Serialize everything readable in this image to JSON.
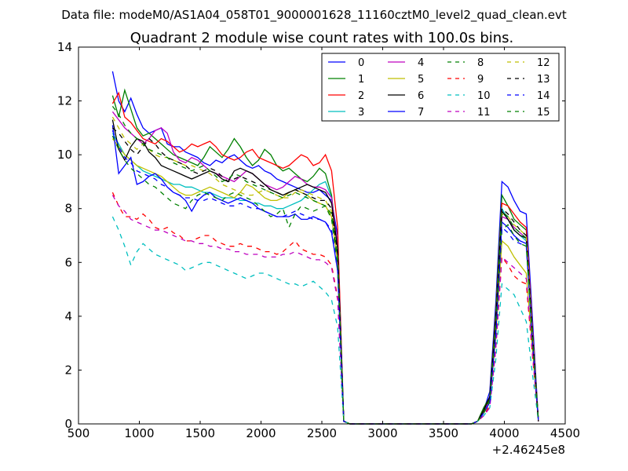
{
  "chart_data": {
    "type": "line",
    "suptitle": "Data file: modeM0/AS1A04_058T01_9000001628_11160cztM0_level2_quad_clean.evt",
    "title": "Quadrant 2 module wise count rates with 100.0s bins.",
    "xlabel": "",
    "ylabel": "",
    "x_offset_label": "+2.46245e8",
    "xlim": [
      500,
      4500
    ],
    "ylim": [
      0,
      14
    ],
    "xticks": [
      "500",
      "1000",
      "1500",
      "2000",
      "2500",
      "3000",
      "3500",
      "4000",
      "4500"
    ],
    "yticks": [
      "0",
      "2",
      "4",
      "6",
      "8",
      "10",
      "12",
      "14"
    ],
    "grid": false,
    "legend_position": "top-right",
    "x": [
      780,
      830,
      880,
      930,
      980,
      1030,
      1080,
      1130,
      1180,
      1230,
      1280,
      1330,
      1380,
      1430,
      1480,
      1530,
      1580,
      1630,
      1680,
      1730,
      1780,
      1830,
      1880,
      1930,
      1980,
      2030,
      2080,
      2130,
      2180,
      2230,
      2280,
      2330,
      2380,
      2430,
      2480,
      2530,
      2580,
      2630,
      2680,
      2730,
      2780,
      2830,
      2880,
      2930,
      2980,
      3030,
      3080,
      3130,
      3180,
      3230,
      3280,
      3330,
      3380,
      3430,
      3480,
      3530,
      3580,
      3630,
      3680,
      3730,
      3780,
      3830,
      3880,
      3930,
      3980,
      4030,
      4080,
      4130,
      4180,
      4230,
      4280
    ],
    "series": [
      {
        "name": "0",
        "color": "#0000ff",
        "dash": "solid",
        "values": [
          13.1,
          12.0,
          11.6,
          12.1,
          11.5,
          11.0,
          10.8,
          10.9,
          11.0,
          10.4,
          10.3,
          10.3,
          10.1,
          10.0,
          9.9,
          9.7,
          9.6,
          9.8,
          9.7,
          9.9,
          10.0,
          9.8,
          9.6,
          9.5,
          9.6,
          9.4,
          9.3,
          9.1,
          9.0,
          8.9,
          8.8,
          8.7,
          8.6,
          8.6,
          8.7,
          8.5,
          8.3,
          7.0,
          0.1,
          0,
          0,
          0,
          0,
          0,
          0,
          0,
          0,
          0,
          0,
          0,
          0,
          0,
          0,
          0,
          0,
          0,
          0,
          0,
          0,
          0,
          0.1,
          0.5,
          1.2,
          4.5,
          9.0,
          8.8,
          8.3,
          7.9,
          7.8,
          4.0,
          0.1
        ]
      },
      {
        "name": "1",
        "color": "#008000",
        "dash": "solid",
        "values": [
          12.2,
          11.4,
          12.4,
          11.7,
          11.0,
          10.7,
          10.8,
          10.6,
          10.4,
          10.2,
          10.0,
          9.9,
          9.8,
          9.7,
          9.6,
          9.9,
          10.3,
          10.1,
          9.9,
          10.2,
          10.6,
          10.3,
          9.9,
          9.6,
          9.8,
          10.2,
          10.0,
          9.6,
          9.4,
          9.5,
          9.3,
          9.1,
          9.0,
          9.2,
          9.5,
          9.3,
          8.5,
          6.5,
          0.1,
          0,
          0,
          0,
          0,
          0,
          0,
          0,
          0,
          0,
          0,
          0,
          0,
          0,
          0,
          0,
          0,
          0,
          0,
          0,
          0,
          0,
          0.1,
          0.6,
          1.0,
          4.2,
          8.5,
          8.1,
          7.6,
          7.4,
          7.2,
          3.5,
          0.1
        ]
      },
      {
        "name": "2",
        "color": "#ff0000",
        "dash": "solid",
        "values": [
          11.9,
          12.3,
          11.4,
          11.2,
          10.9,
          10.6,
          10.5,
          10.4,
          10.6,
          10.5,
          10.3,
          10.1,
          10.2,
          10.4,
          10.3,
          10.4,
          10.5,
          10.3,
          10.0,
          9.9,
          9.8,
          9.9,
          10.1,
          10.2,
          9.9,
          9.8,
          9.7,
          9.6,
          9.5,
          9.6,
          9.8,
          10.0,
          9.9,
          9.6,
          9.7,
          10.0,
          9.4,
          7.3,
          0.1,
          0,
          0,
          0,
          0,
          0,
          0,
          0,
          0,
          0,
          0,
          0,
          0,
          0,
          0,
          0,
          0,
          0,
          0,
          0,
          0,
          0,
          0.1,
          0.5,
          1.0,
          4.0,
          8.2,
          8.1,
          7.8,
          7.5,
          7.3,
          3.6,
          0.1
        ]
      },
      {
        "name": "3",
        "color": "#00bfbf",
        "dash": "solid",
        "values": [
          10.8,
          10.4,
          10.0,
          9.8,
          9.6,
          9.4,
          9.3,
          9.2,
          9.1,
          9.0,
          8.9,
          8.9,
          8.8,
          8.8,
          8.7,
          8.6,
          8.6,
          8.5,
          8.4,
          8.4,
          8.4,
          8.3,
          8.3,
          8.2,
          8.2,
          8.1,
          8.1,
          8.0,
          8.0,
          8.1,
          8.2,
          8.3,
          8.5,
          8.7,
          8.9,
          9.0,
          8.4,
          6.6,
          0.1,
          0,
          0,
          0,
          0,
          0,
          0,
          0,
          0,
          0,
          0,
          0,
          0,
          0,
          0,
          0,
          0,
          0,
          0,
          0,
          0,
          0,
          0.1,
          0.4,
          0.9,
          3.8,
          8.0,
          7.6,
          7.2,
          7.0,
          6.8,
          3.2,
          0.1
        ]
      },
      {
        "name": "4",
        "color": "#bf00bf",
        "dash": "solid",
        "values": [
          11.6,
          11.3,
          11.0,
          10.8,
          10.6,
          10.4,
          10.6,
          10.9,
          11.0,
          10.8,
          10.1,
          9.8,
          9.7,
          9.9,
          9.8,
          9.6,
          9.4,
          9.3,
          9.2,
          9.1,
          9.0,
          9.2,
          9.4,
          9.3,
          9.1,
          8.9,
          8.8,
          8.7,
          8.8,
          9.0,
          9.2,
          9.1,
          8.9,
          8.8,
          8.8,
          8.7,
          8.4,
          6.6,
          0.1,
          0,
          0,
          0,
          0,
          0,
          0,
          0,
          0,
          0,
          0,
          0,
          0,
          0,
          0,
          0,
          0,
          0,
          0,
          0,
          0,
          0,
          0.1,
          0.4,
          0.9,
          3.6,
          7.7,
          7.6,
          7.3,
          7.1,
          6.9,
          3.3,
          0.1
        ]
      },
      {
        "name": "5",
        "color": "#bfbf00",
        "dash": "solid",
        "values": [
          10.6,
          10.3,
          10.0,
          9.8,
          9.6,
          9.5,
          9.4,
          9.3,
          9.2,
          9.0,
          8.8,
          8.6,
          8.5,
          8.5,
          8.6,
          8.7,
          8.8,
          8.7,
          8.6,
          8.5,
          8.4,
          8.6,
          8.9,
          8.8,
          8.6,
          8.4,
          8.3,
          8.3,
          8.4,
          8.6,
          8.7,
          8.6,
          8.5,
          8.3,
          8.2,
          8.1,
          7.7,
          6.0,
          0.1,
          0,
          0,
          0,
          0,
          0,
          0,
          0,
          0,
          0,
          0,
          0,
          0,
          0,
          0,
          0,
          0,
          0,
          0,
          0,
          0,
          0,
          0.1,
          0.4,
          0.8,
          3.2,
          6.8,
          6.6,
          6.2,
          5.9,
          5.6,
          2.8,
          0.1
        ]
      },
      {
        "name": "6",
        "color": "#000000",
        "dash": "solid",
        "values": [
          11.3,
          10.2,
          9.8,
          10.3,
          10.6,
          10.5,
          10.1,
          9.9,
          9.6,
          9.5,
          9.4,
          9.3,
          9.2,
          9.1,
          9.2,
          9.3,
          9.4,
          9.3,
          9.1,
          9.0,
          9.4,
          9.5,
          9.4,
          9.3,
          9.1,
          8.9,
          8.7,
          8.6,
          8.5,
          8.6,
          8.7,
          8.8,
          8.9,
          8.8,
          8.7,
          8.6,
          8.2,
          6.5,
          0.1,
          0,
          0,
          0,
          0,
          0,
          0,
          0,
          0,
          0,
          0,
          0,
          0,
          0,
          0,
          0,
          0,
          0,
          0,
          0,
          0,
          0,
          0.1,
          0.5,
          1.0,
          3.8,
          7.9,
          7.6,
          7.2,
          7.0,
          6.9,
          3.4,
          0.1
        ]
      },
      {
        "name": "7",
        "color": "#0000ff",
        "dash": "solid",
        "values": [
          11.1,
          9.3,
          9.6,
          9.9,
          8.9,
          9.0,
          9.2,
          9.3,
          9.1,
          8.8,
          8.6,
          8.5,
          8.3,
          7.9,
          8.3,
          8.5,
          8.6,
          8.4,
          8.3,
          8.2,
          8.3,
          8.4,
          8.3,
          8.2,
          8.0,
          7.9,
          7.8,
          7.7,
          7.7,
          7.7,
          7.8,
          7.6,
          7.6,
          7.7,
          7.6,
          7.5,
          7.1,
          5.7,
          0.1,
          0,
          0,
          0,
          0,
          0,
          0,
          0,
          0,
          0,
          0,
          0,
          0,
          0,
          0,
          0,
          0,
          0,
          0,
          0,
          0,
          0,
          0.1,
          0.4,
          0.8,
          3.4,
          7.5,
          7.3,
          7.0,
          6.8,
          6.7,
          3.2,
          0.1
        ]
      },
      {
        "name": "8",
        "color": "#008000",
        "dash": "dashed",
        "values": [
          10.7,
          10.2,
          9.8,
          9.5,
          9.3,
          9.1,
          8.9,
          8.8,
          8.6,
          8.4,
          8.2,
          8.1,
          8.0,
          8.3,
          8.5,
          8.6,
          8.5,
          8.4,
          8.3,
          8.5,
          8.6,
          8.5,
          8.4,
          8.3,
          8.1,
          7.9,
          7.7,
          7.8,
          8.0,
          7.3,
          7.8,
          8.1,
          8.0,
          7.9,
          8.0,
          8.1,
          7.6,
          5.9,
          0.1,
          0,
          0,
          0,
          0,
          0,
          0,
          0,
          0,
          0,
          0,
          0,
          0,
          0,
          0,
          0,
          0,
          0,
          0,
          0,
          0,
          0,
          0.1,
          0.4,
          0.8,
          3.4,
          7.2,
          7.4,
          7.0,
          6.7,
          6.6,
          3.1,
          0.1
        ]
      },
      {
        "name": "9",
        "color": "#ff0000",
        "dash": "dashed",
        "values": [
          8.6,
          8.1,
          7.7,
          7.7,
          7.6,
          7.8,
          7.6,
          7.3,
          7.2,
          7.3,
          7.1,
          7.0,
          6.8,
          6.8,
          6.9,
          7.0,
          7.0,
          6.8,
          6.7,
          6.6,
          6.6,
          6.7,
          6.6,
          6.6,
          6.5,
          6.4,
          6.4,
          6.3,
          6.4,
          6.6,
          6.8,
          6.5,
          6.4,
          6.3,
          6.3,
          6.2,
          5.9,
          4.7,
          0.1,
          0,
          0,
          0,
          0,
          0,
          0,
          0,
          0,
          0,
          0,
          0,
          0,
          0,
          0,
          0,
          0,
          0,
          0,
          0,
          0,
          0,
          0.1,
          0.3,
          0.7,
          2.8,
          6.2,
          5.9,
          5.5,
          5.3,
          5.2,
          2.6,
          0.1
        ]
      },
      {
        "name": "10",
        "color": "#00bfbf",
        "dash": "dashed",
        "values": [
          7.7,
          7.2,
          6.6,
          5.9,
          6.4,
          6.7,
          6.5,
          6.3,
          6.2,
          6.1,
          6.0,
          5.9,
          5.7,
          5.8,
          5.9,
          6.0,
          6.0,
          5.9,
          5.8,
          5.7,
          5.6,
          5.5,
          5.4,
          5.5,
          5.6,
          5.6,
          5.5,
          5.4,
          5.3,
          5.2,
          5.2,
          5.1,
          5.2,
          5.3,
          5.1,
          4.9,
          4.6,
          3.6,
          0.1,
          0,
          0,
          0,
          0,
          0,
          0,
          0,
          0,
          0,
          0,
          0,
          0,
          0,
          0,
          0,
          0,
          0,
          0,
          0,
          0,
          0,
          0.1,
          0.3,
          0.6,
          2.4,
          5.2,
          5.0,
          4.8,
          4.3,
          3.8,
          1.9,
          0.1
        ]
      },
      {
        "name": "11",
        "color": "#bf00bf",
        "dash": "dashed",
        "values": [
          8.5,
          8.1,
          7.9,
          7.6,
          7.5,
          7.4,
          7.3,
          7.2,
          7.2,
          7.1,
          7.0,
          6.9,
          6.8,
          6.8,
          6.7,
          6.7,
          6.6,
          6.6,
          6.5,
          6.5,
          6.4,
          6.4,
          6.3,
          6.3,
          6.3,
          6.2,
          6.2,
          6.2,
          6.3,
          6.3,
          6.4,
          6.3,
          6.2,
          6.1,
          6.1,
          6.0,
          5.8,
          4.6,
          0.1,
          0,
          0,
          0,
          0,
          0,
          0,
          0,
          0,
          0,
          0,
          0,
          0,
          0,
          0,
          0,
          0,
          0,
          0,
          0,
          0,
          0,
          0.1,
          0.3,
          0.6,
          2.8,
          6.2,
          6.0,
          5.8,
          5.6,
          5.4,
          2.7,
          0.1
        ]
      },
      {
        "name": "12",
        "color": "#bfbf00",
        "dash": "dashed",
        "values": [
          11.4,
          11.0,
          10.6,
          10.4,
          10.2,
          10.4,
          10.2,
          10.0,
          9.9,
          9.9,
          9.8,
          9.7,
          9.6,
          9.6,
          9.5,
          9.4,
          9.3,
          9.1,
          8.9,
          8.8,
          8.7,
          8.6,
          8.5,
          8.5,
          8.6,
          8.7,
          8.6,
          8.5,
          8.4,
          8.4,
          8.6,
          8.7,
          8.6,
          8.5,
          8.4,
          8.3,
          7.9,
          6.2,
          0.1,
          0,
          0,
          0,
          0,
          0,
          0,
          0,
          0,
          0,
          0,
          0,
          0,
          0,
          0,
          0,
          0,
          0,
          0,
          0,
          0,
          0,
          0.1,
          0.4,
          0.9,
          3.6,
          7.8,
          7.7,
          7.4,
          7.2,
          7.0,
          3.4,
          0.1
        ]
      },
      {
        "name": "13",
        "color": "#000000",
        "dash": "dashed",
        "values": [
          11.0,
          10.8,
          10.5,
          10.2,
          10.0,
          10.3,
          10.6,
          10.4,
          10.1,
          9.9,
          9.8,
          9.7,
          9.6,
          9.4,
          9.3,
          9.4,
          9.5,
          9.4,
          9.2,
          9.0,
          9.1,
          9.2,
          9.1,
          9.0,
          8.9,
          8.8,
          8.7,
          8.6,
          8.5,
          8.6,
          8.7,
          8.6,
          8.5,
          8.4,
          8.3,
          8.3,
          8.0,
          6.3,
          0.1,
          0,
          0,
          0,
          0,
          0,
          0,
          0,
          0,
          0,
          0,
          0,
          0,
          0,
          0,
          0,
          0,
          0,
          0,
          0,
          0,
          0,
          0.1,
          0.5,
          1.0,
          3.9,
          8.0,
          7.8,
          7.5,
          7.2,
          7.0,
          3.4,
          0.1
        ]
      },
      {
        "name": "14",
        "color": "#0000ff",
        "dash": "dashed",
        "values": [
          10.9,
          10.3,
          9.9,
          9.7,
          9.4,
          9.3,
          9.2,
          9.1,
          8.9,
          8.8,
          8.6,
          8.5,
          8.4,
          8.4,
          8.3,
          8.3,
          8.4,
          8.3,
          8.2,
          8.1,
          8.1,
          8.2,
          8.1,
          8.0,
          8.0,
          7.9,
          7.8,
          7.7,
          7.7,
          7.8,
          7.9,
          7.8,
          7.7,
          7.6,
          7.6,
          7.5,
          7.2,
          5.7,
          0.1,
          0,
          0,
          0,
          0,
          0,
          0,
          0,
          0,
          0,
          0,
          0,
          0,
          0,
          0,
          0,
          0,
          0,
          0,
          0,
          0,
          0,
          0.1,
          0.4,
          0.8,
          3.3,
          7.3,
          7.1,
          6.8,
          6.7,
          6.6,
          3.2,
          0.1
        ]
      },
      {
        "name": "15",
        "color": "#008000",
        "dash": "dashed",
        "values": [
          11.8,
          11.5,
          11.1,
          10.8,
          10.6,
          10.4,
          10.2,
          10.1,
          10.0,
          9.9,
          9.7,
          9.6,
          9.5,
          9.4,
          9.5,
          9.6,
          9.4,
          9.2,
          9.0,
          9.1,
          9.3,
          9.2,
          9.0,
          8.9,
          8.8,
          8.7,
          8.6,
          8.5,
          8.4,
          8.5,
          8.6,
          8.5,
          8.4,
          8.3,
          8.2,
          8.1,
          7.8,
          6.1,
          0.1,
          0,
          0,
          0,
          0,
          0,
          0,
          0,
          0,
          0,
          0,
          0,
          0,
          0,
          0,
          0,
          0,
          0,
          0,
          0,
          0,
          0,
          0.1,
          0.4,
          0.9,
          3.7,
          7.9,
          7.7,
          7.3,
          7.1,
          6.9,
          3.3,
          0.1
        ]
      }
    ]
  }
}
